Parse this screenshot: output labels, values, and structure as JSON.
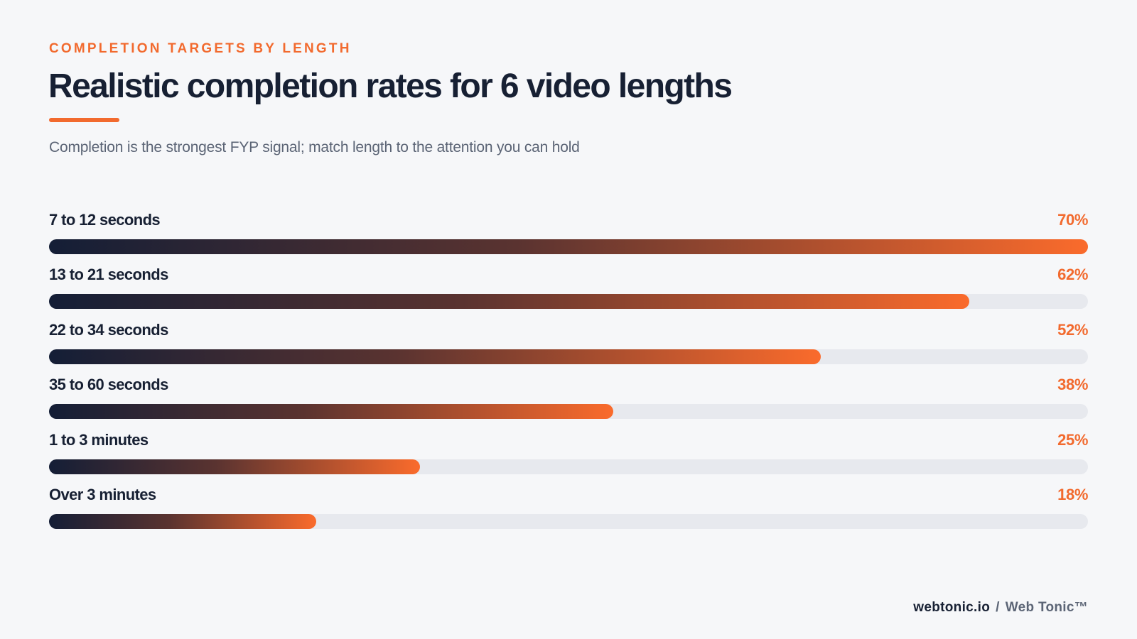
{
  "header": {
    "eyebrow": "COMPLETION TARGETS BY LENGTH",
    "title": "Realistic completion rates for 6 video lengths",
    "subtitle": "Completion is the strongest FYP signal; match length to the attention you can hold"
  },
  "footer": {
    "site": "webtonic.io",
    "separator": "/",
    "brand": "Web Tonic™"
  },
  "colors": {
    "accent": "#f26a2e",
    "title": "#172033",
    "track": "#e7e9ee",
    "gradient_start": "#141e36",
    "gradient_end": "#fa6b2c"
  },
  "chart_data": {
    "type": "bar",
    "orientation": "horizontal",
    "scale_max": 70,
    "categories": [
      "7 to 12 seconds",
      "13 to 21 seconds",
      "22 to 34 seconds",
      "35 to 60 seconds",
      "1 to 3 minutes",
      "Over 3 minutes"
    ],
    "values": [
      70,
      62,
      52,
      38,
      25,
      18
    ],
    "value_labels": [
      "70%",
      "62%",
      "52%",
      "38%",
      "25%",
      "18%"
    ]
  }
}
